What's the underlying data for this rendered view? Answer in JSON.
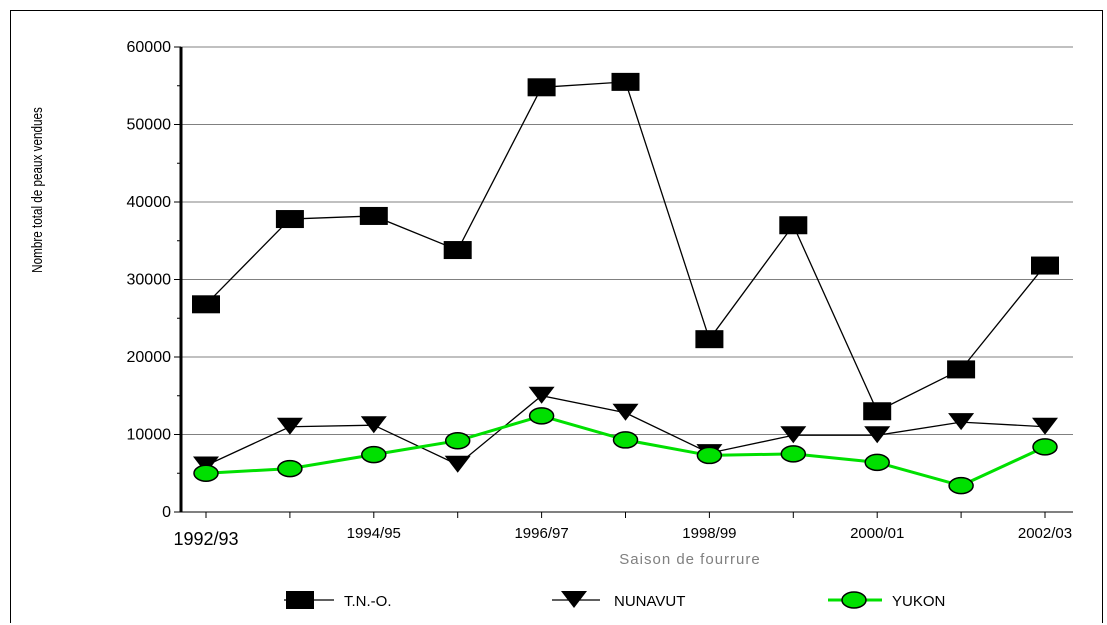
{
  "chart_data": {
    "type": "line",
    "xlabel": "Saison de fourrure",
    "ylabel": "Nombre total de peaux vendues",
    "ylim": [
      0,
      60000
    ],
    "yticks": [
      "0",
      "10000",
      "20000",
      "30000",
      "40000",
      "50000",
      "60000"
    ],
    "x_tick_labels": [
      "1992/93",
      "1994/95",
      "1996/97",
      "1998/99",
      "2000/01",
      "2002/03"
    ],
    "x": [
      "1992/93",
      "1993/94",
      "1994/95",
      "1995/96",
      "1996/97",
      "1997/98",
      "1998/99",
      "1999/00",
      "2000/01",
      "2001/02",
      "2002/03"
    ],
    "grid": true,
    "legend_position": "bottom",
    "series": [
      {
        "name": "T.N.-O.",
        "marker": "square",
        "color": "#000000",
        "values": [
          26800,
          37800,
          38200,
          33800,
          54800,
          55500,
          22300,
          37000,
          13000,
          18400,
          31800
        ]
      },
      {
        "name": "NUNAVUT",
        "marker": "triangle-down",
        "color": "#000000",
        "values": [
          6000,
          11000,
          11200,
          6100,
          15000,
          12800,
          7600,
          9900,
          9900,
          11600,
          11000
        ]
      },
      {
        "name": "YUKON",
        "marker": "circle",
        "color": "#00e000",
        "values": [
          5000,
          5600,
          7400,
          9200,
          12400,
          9300,
          7300,
          7500,
          6400,
          3400,
          8400
        ]
      }
    ]
  }
}
